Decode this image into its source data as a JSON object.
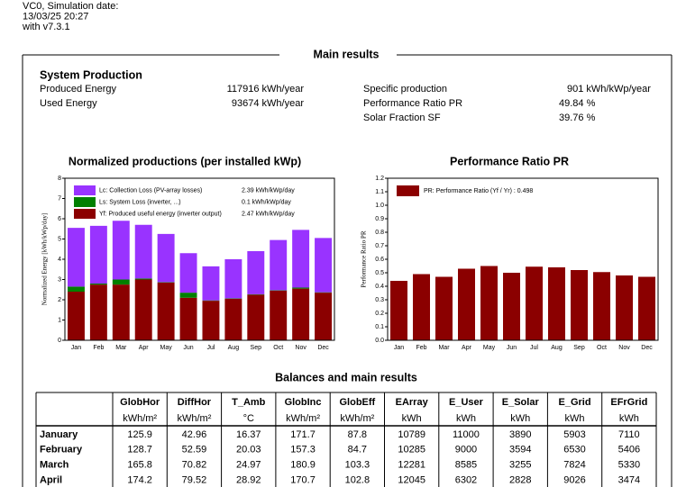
{
  "header": {
    "lines": [
      "VC0, Simulation date:",
      "13/03/25 20:27",
      "with v7.3.1"
    ]
  },
  "main_title": "Main results",
  "system_production": {
    "title": "System Production",
    "left": [
      {
        "label": "Produced Energy",
        "value": "117916 kWh/year"
      },
      {
        "label": "Used Energy",
        "value": "93674 kWh/year"
      }
    ],
    "right": [
      {
        "label": "Specific production",
        "value": "901 kWh/kWp/year"
      },
      {
        "label": "Performance Ratio PR",
        "value": "49.84 %"
      },
      {
        "label": "Solar Fraction SF",
        "value": "39.76 %"
      }
    ]
  },
  "chart_data": [
    {
      "type": "bar",
      "stacked": true,
      "title": "Normalized productions (per installed kWp)",
      "y_label": "Normalized Energy [kWh/kWp/day]",
      "categories": [
        "Jan",
        "Feb",
        "Mar",
        "Apr",
        "May",
        "Jun",
        "Jul",
        "Aug",
        "Sep",
        "Oct",
        "Nov",
        "Dec"
      ],
      "series": [
        {
          "name": "Yf: Produced useful energy  (inverter output)",
          "summary": "2.47 kWh/kWp/day",
          "color": "#8b0000",
          "values": [
            2.4,
            2.75,
            2.75,
            3.0,
            2.85,
            2.1,
            1.95,
            2.05,
            2.25,
            2.45,
            2.55,
            2.35
          ]
        },
        {
          "name": "Ls: System Loss  (inverter, ...)",
          "summary": "0.1 kWh/kWp/day",
          "color": "#008000",
          "values": [
            0.25,
            0.05,
            0.25,
            0.05,
            0.02,
            0.25,
            0.02,
            0.02,
            0.02,
            0.02,
            0.05,
            0.02
          ]
        },
        {
          "name": "Lc: Collection Loss (PV-array losses)",
          "summary": "2.39 kWh/kWp/day",
          "color": "#9933ff",
          "values": [
            2.9,
            2.85,
            2.9,
            2.65,
            2.38,
            1.95,
            1.68,
            1.93,
            2.13,
            2.48,
            2.85,
            2.68
          ]
        }
      ],
      "ylim": [
        0,
        8
      ],
      "yticks": [
        0,
        1,
        2,
        3,
        4,
        5,
        6,
        7,
        8
      ],
      "grid": false
    },
    {
      "type": "bar",
      "title": "Performance Ratio PR",
      "y_label": "Performance Ratio PR",
      "categories": [
        "Jan",
        "Feb",
        "Mar",
        "Apr",
        "May",
        "Jun",
        "Jul",
        "Aug",
        "Sep",
        "Oct",
        "Nov",
        "Dec"
      ],
      "series": [
        {
          "name": "PR: Performance Ratio (Yf / Yr) :  0.498",
          "color": "#8b0000",
          "values": [
            0.44,
            0.49,
            0.47,
            0.53,
            0.55,
            0.5,
            0.545,
            0.54,
            0.52,
            0.505,
            0.48,
            0.47
          ]
        }
      ],
      "ylim": [
        0,
        1.2
      ],
      "yticks": [
        {
          "value": 0,
          "label": "0.0"
        },
        0.1,
        0.2,
        0.3,
        0.4,
        0.5,
        0.6,
        0.7,
        0.8,
        0.9,
        {
          "value": 1,
          "label": "1.0"
        },
        1.1,
        1.2
      ],
      "grid": false
    }
  ],
  "table": {
    "title": "Balances and main results",
    "columns": [
      {
        "name": "GlobHor",
        "unit": "kWh/m²"
      },
      {
        "name": "DiffHor",
        "unit": "kWh/m²"
      },
      {
        "name": "T_Amb",
        "unit": "°C"
      },
      {
        "name": "GlobInc",
        "unit": "kWh/m²"
      },
      {
        "name": "GlobEff",
        "unit": "kWh/m²"
      },
      {
        "name": "EArray",
        "unit": "kWh"
      },
      {
        "name": "E_User",
        "unit": "kWh"
      },
      {
        "name": "E_Solar",
        "unit": "kWh"
      },
      {
        "name": "E_Grid",
        "unit": "kWh"
      },
      {
        "name": "EFrGrid",
        "unit": "kWh"
      }
    ],
    "rows": [
      [
        "January",
        "125.9",
        "42.96",
        "16.37",
        "171.7",
        "87.8",
        "10789",
        "11000",
        "3890",
        "5903",
        "7110"
      ],
      [
        "February",
        "128.7",
        "52.59",
        "20.03",
        "157.3",
        "84.7",
        "10285",
        "9000",
        "3594",
        "6530",
        "5406"
      ],
      [
        "March",
        "165.8",
        "70.82",
        "24.97",
        "180.9",
        "103.3",
        "12281",
        "8585",
        "3255",
        "7824",
        "5330"
      ],
      [
        "April",
        "174.2",
        "79.52",
        "28.92",
        "170.7",
        "102.8",
        "12045",
        "6302",
        "2828",
        "9026",
        "3474"
      ]
    ]
  }
}
